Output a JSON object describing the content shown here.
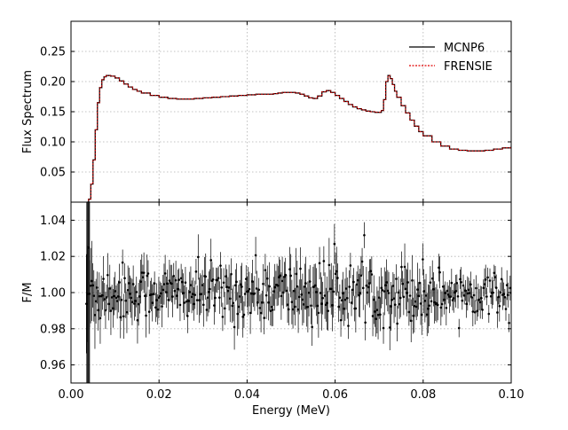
{
  "chart_data": [
    {
      "type": "line",
      "panel": "top",
      "ylabel": "Flux Spectrum",
      "xlim": [
        0.0,
        0.1
      ],
      "ylim": [
        0.0,
        0.3
      ],
      "yticks": [
        0.05,
        0.1,
        0.15,
        0.2,
        0.25
      ],
      "ytick_labels": [
        "0.05",
        "0.10",
        "0.15",
        "0.20",
        "0.25"
      ],
      "grid": true,
      "legend": "upper-right",
      "series": [
        {
          "name": "MCNP6",
          "color": "#000000",
          "style": "solid",
          "x": [
            0.0036,
            0.004,
            0.0045,
            0.005,
            0.0055,
            0.006,
            0.0065,
            0.007,
            0.0075,
            0.008,
            0.0085,
            0.009,
            0.01,
            0.011,
            0.012,
            0.013,
            0.014,
            0.015,
            0.016,
            0.018,
            0.02,
            0.022,
            0.024,
            0.026,
            0.028,
            0.03,
            0.032,
            0.034,
            0.036,
            0.038,
            0.04,
            0.042,
            0.044,
            0.046,
            0.047,
            0.048,
            0.049,
            0.05,
            0.051,
            0.052,
            0.053,
            0.054,
            0.055,
            0.056,
            0.057,
            0.058,
            0.059,
            0.06,
            0.061,
            0.062,
            0.063,
            0.064,
            0.065,
            0.066,
            0.067,
            0.068,
            0.069,
            0.07,
            0.0705,
            0.071,
            0.0715,
            0.072,
            0.0725,
            0.073,
            0.0735,
            0.074,
            0.075,
            0.076,
            0.077,
            0.078,
            0.079,
            0.08,
            0.082,
            0.084,
            0.086,
            0.088,
            0.09,
            0.092,
            0.094,
            0.096,
            0.098,
            0.1
          ],
          "y": [
            0.0,
            0.005,
            0.03,
            0.07,
            0.12,
            0.165,
            0.19,
            0.203,
            0.208,
            0.21,
            0.21,
            0.209,
            0.206,
            0.201,
            0.196,
            0.191,
            0.187,
            0.184,
            0.181,
            0.177,
            0.174,
            0.172,
            0.171,
            0.171,
            0.172,
            0.173,
            0.174,
            0.175,
            0.176,
            0.177,
            0.178,
            0.179,
            0.179,
            0.18,
            0.181,
            0.182,
            0.182,
            0.182,
            0.181,
            0.179,
            0.176,
            0.173,
            0.172,
            0.176,
            0.183,
            0.185,
            0.182,
            0.177,
            0.172,
            0.167,
            0.162,
            0.158,
            0.155,
            0.153,
            0.151,
            0.15,
            0.149,
            0.149,
            0.152,
            0.17,
            0.2,
            0.21,
            0.205,
            0.195,
            0.184,
            0.174,
            0.16,
            0.148,
            0.136,
            0.126,
            0.117,
            0.11,
            0.1,
            0.093,
            0.088,
            0.086,
            0.085,
            0.085,
            0.086,
            0.088,
            0.09,
            0.093
          ]
        },
        {
          "name": "FRENSIE",
          "color": "#e00000",
          "style": "dashed",
          "x": [
            0.0036,
            0.004,
            0.0045,
            0.005,
            0.0055,
            0.006,
            0.0065,
            0.007,
            0.0075,
            0.008,
            0.0085,
            0.009,
            0.01,
            0.011,
            0.012,
            0.013,
            0.014,
            0.015,
            0.016,
            0.018,
            0.02,
            0.022,
            0.024,
            0.026,
            0.028,
            0.03,
            0.032,
            0.034,
            0.036,
            0.038,
            0.04,
            0.042,
            0.044,
            0.046,
            0.047,
            0.048,
            0.049,
            0.05,
            0.051,
            0.052,
            0.053,
            0.054,
            0.055,
            0.056,
            0.057,
            0.058,
            0.059,
            0.06,
            0.061,
            0.062,
            0.063,
            0.064,
            0.065,
            0.066,
            0.067,
            0.068,
            0.069,
            0.07,
            0.0705,
            0.071,
            0.0715,
            0.072,
            0.0725,
            0.073,
            0.0735,
            0.074,
            0.075,
            0.076,
            0.077,
            0.078,
            0.079,
            0.08,
            0.082,
            0.084,
            0.086,
            0.088,
            0.09,
            0.092,
            0.094,
            0.096,
            0.098,
            0.1
          ],
          "y": [
            0.0,
            0.005,
            0.03,
            0.07,
            0.12,
            0.165,
            0.19,
            0.203,
            0.208,
            0.21,
            0.21,
            0.209,
            0.206,
            0.201,
            0.196,
            0.191,
            0.187,
            0.184,
            0.181,
            0.177,
            0.174,
            0.172,
            0.171,
            0.171,
            0.172,
            0.173,
            0.174,
            0.175,
            0.176,
            0.177,
            0.178,
            0.179,
            0.179,
            0.18,
            0.181,
            0.182,
            0.182,
            0.182,
            0.181,
            0.179,
            0.176,
            0.173,
            0.172,
            0.176,
            0.183,
            0.185,
            0.182,
            0.177,
            0.172,
            0.167,
            0.162,
            0.158,
            0.155,
            0.153,
            0.151,
            0.15,
            0.149,
            0.149,
            0.152,
            0.17,
            0.2,
            0.21,
            0.205,
            0.195,
            0.184,
            0.174,
            0.16,
            0.148,
            0.136,
            0.126,
            0.117,
            0.11,
            0.1,
            0.093,
            0.088,
            0.086,
            0.085,
            0.085,
            0.086,
            0.088,
            0.09,
            0.093
          ]
        }
      ]
    },
    {
      "type": "scatter",
      "panel": "bottom",
      "xlabel": "Energy (MeV)",
      "ylabel": "F/M",
      "xlim": [
        0.0,
        0.1
      ],
      "ylim": [
        0.95,
        1.05
      ],
      "xticks": [
        0.0,
        0.02,
        0.04,
        0.06,
        0.08,
        0.1
      ],
      "xtick_labels": [
        "0.00",
        "0.02",
        "0.04",
        "0.06",
        "0.08",
        "0.10"
      ],
      "yticks": [
        0.96,
        0.98,
        1.0,
        1.02,
        1.04
      ],
      "ytick_labels": [
        "0.96",
        "0.98",
        "1.00",
        "1.02",
        "1.04"
      ],
      "grid": true,
      "error_bars": true,
      "series": [
        {
          "color": "#000000",
          "x_range": [
            0.0035,
            0.1
          ],
          "point_count": 400,
          "mean": 1.0,
          "spread_envelope": {
            "x": [
              0.0035,
              0.006,
              0.02,
              0.04,
              0.06,
              0.07,
              0.08,
              0.085,
              0.1
            ],
            "sigma": [
              0.02,
              0.009,
              0.007,
              0.008,
              0.009,
              0.008,
              0.009,
              0.006,
              0.005
            ]
          }
        }
      ]
    }
  ]
}
